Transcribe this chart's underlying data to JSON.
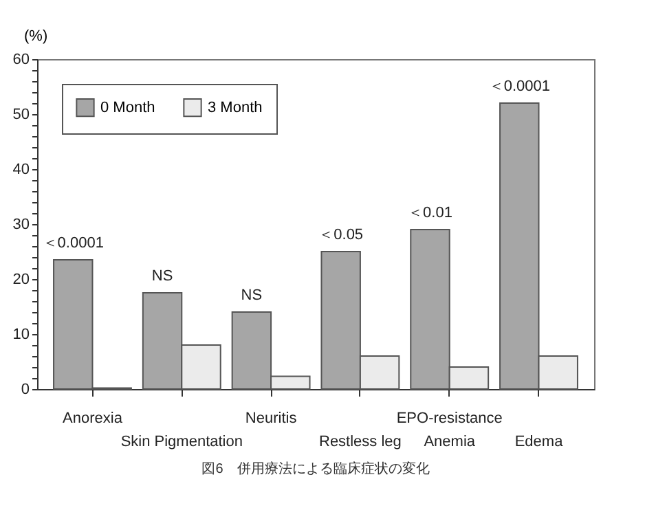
{
  "chart_data": {
    "type": "bar",
    "title": "図6　併用療法による臨床症状の変化",
    "ylabel": "(%)",
    "categories": [
      "Anorexia",
      "Skin Pigmentation",
      "Neuritis",
      "Restless leg",
      "EPO-resistance\nAnemia",
      "Edema"
    ],
    "series": [
      {
        "name": "0 Month",
        "color": "#a6a6a6",
        "values": [
          23.5,
          17.5,
          14,
          25,
          29,
          52
        ]
      },
      {
        "name": "3 Month",
        "color": "#ebebeb",
        "values": [
          0.2,
          8,
          2.3,
          6,
          4,
          6
        ]
      }
    ],
    "ylim": [
      0,
      60
    ],
    "yticks": [
      0,
      {
        "value": 2,
        "label": null
      },
      {
        "value": 4,
        "label": null
      },
      {
        "value": 6,
        "label": null
      },
      {
        "value": 8,
        "label": null
      },
      10,
      {
        "value": 12,
        "label": null
      },
      {
        "value": 14,
        "label": null
      },
      {
        "value": 16,
        "label": null
      },
      {
        "value": 18,
        "label": null
      },
      20,
      {
        "value": 22,
        "label": null
      },
      {
        "value": 24,
        "label": null
      },
      {
        "value": 26,
        "label": null
      },
      {
        "value": 28,
        "label": null
      },
      30,
      {
        "value": 32,
        "label": null
      },
      {
        "value": 34,
        "label": null
      },
      {
        "value": 36,
        "label": null
      },
      {
        "value": 38,
        "label": null
      },
      40,
      {
        "value": 42,
        "label": null
      },
      {
        "value": 44,
        "label": null
      },
      {
        "value": 46,
        "label": null
      },
      {
        "value": 48,
        "label": null
      },
      50,
      {
        "value": 52,
        "label": null
      },
      {
        "value": 54,
        "label": null
      },
      {
        "value": 56,
        "label": null
      },
      {
        "value": 58,
        "label": null
      },
      60
    ],
    "annotations": [
      {
        "text": "＜0.0001",
        "x": "Anorexia",
        "y": 23.5
      },
      {
        "text": "NS",
        "x": "Skin Pigmentation",
        "y": 17.5
      },
      {
        "text": "NS",
        "x": "Neuritis",
        "y": 14
      },
      {
        "text": "＜0.05",
        "x": "Restless leg",
        "y": 25
      },
      {
        "text": "＜0.01",
        "x": "EPO-resistance\nAnemia",
        "y": 29
      },
      {
        "text": "＜0.0001",
        "x": "Edema",
        "y": 52
      }
    ],
    "legend": "top left",
    "grid": false
  }
}
